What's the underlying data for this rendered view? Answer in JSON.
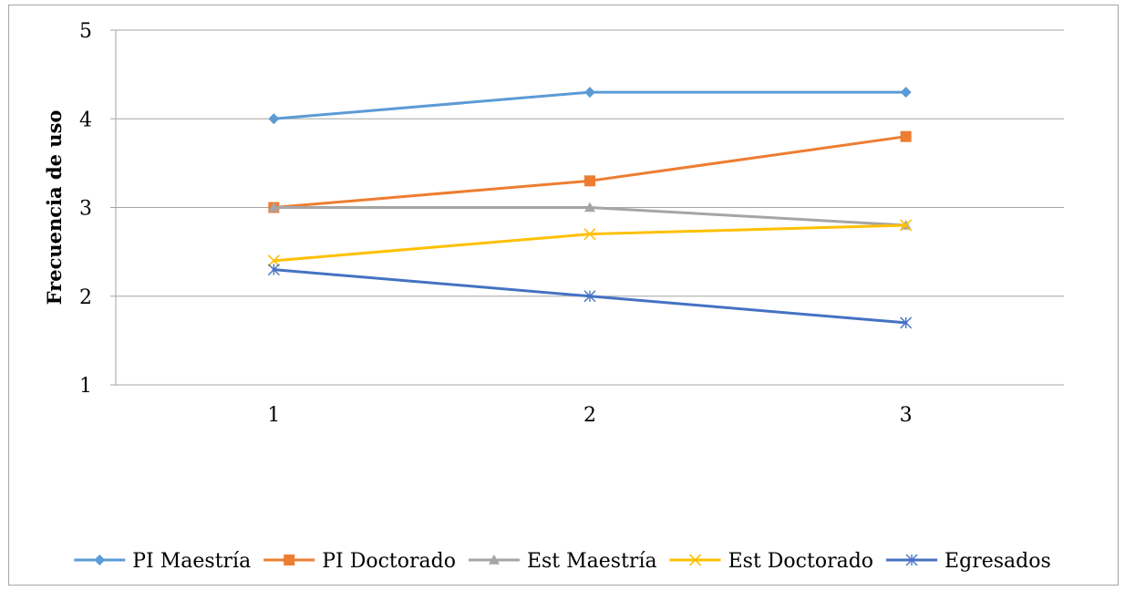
{
  "chart_data": {
    "type": "line",
    "title": "",
    "xlabel": "",
    "ylabel": "Frecuencia de uso",
    "categories": [
      "1",
      "2",
      "3"
    ],
    "yticks": [
      "1",
      "2",
      "3",
      "4",
      "5"
    ],
    "ylim": [
      1,
      5
    ],
    "grid": true,
    "legend_position": "bottom",
    "series": [
      {
        "name": "PI  Maestría",
        "values": [
          4.0,
          4.3,
          4.3
        ],
        "color": "#5B9BD5",
        "marker": "diamond"
      },
      {
        "name": "PI Doctorado",
        "values": [
          3.0,
          3.3,
          3.8
        ],
        "color": "#ED7D31",
        "marker": "square"
      },
      {
        "name": "Est Maestría",
        "values": [
          3.0,
          3.0,
          2.8
        ],
        "color": "#A5A5A5",
        "marker": "triangle"
      },
      {
        "name": "Est Doctorado",
        "values": [
          2.4,
          2.7,
          2.8
        ],
        "color": "#FFC000",
        "marker": "x"
      },
      {
        "name": "Egresados",
        "values": [
          2.3,
          2.0,
          1.7
        ],
        "color": "#4472C4",
        "marker": "star"
      }
    ]
  }
}
